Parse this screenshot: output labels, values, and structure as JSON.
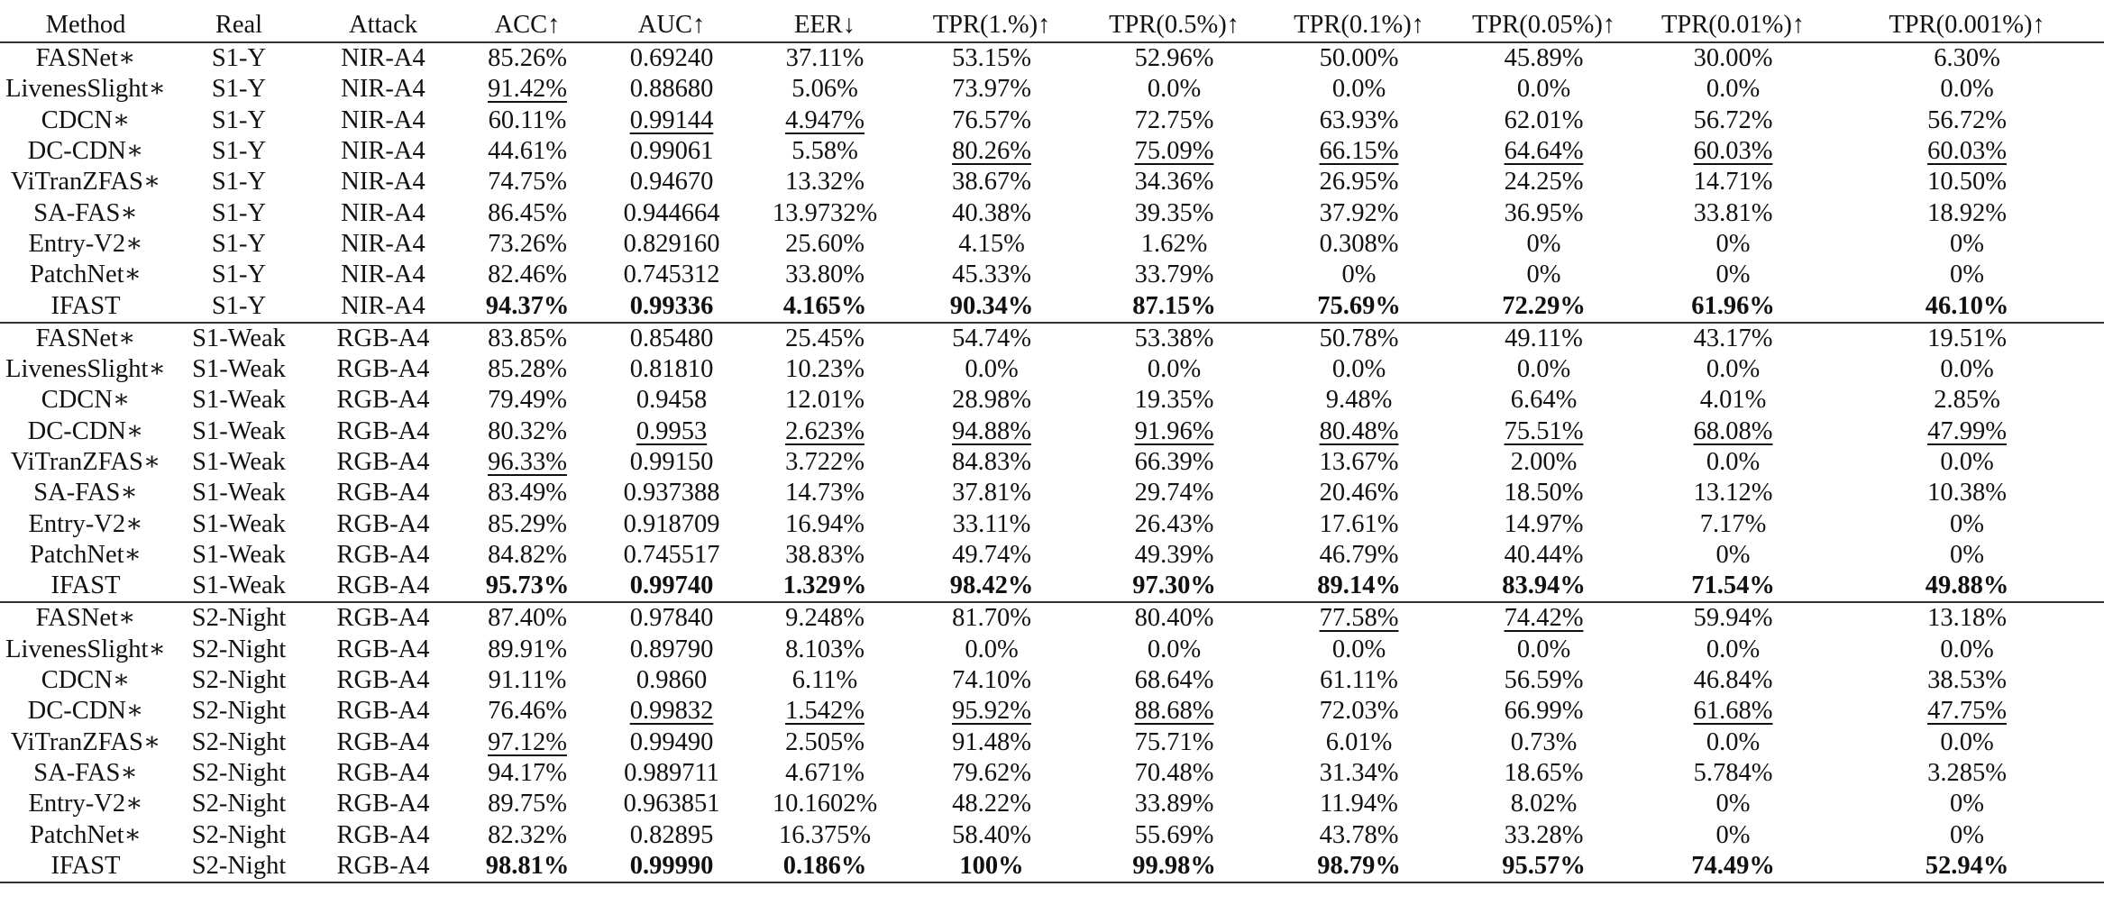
{
  "columns": [
    "Method",
    "Real",
    "Attack",
    "ACC↑",
    "AUC↑",
    "EER↓",
    "TPR(1.%)↑",
    "TPR(0.5%)↑",
    "TPR(0.1%)↑",
    "TPR(0.05%)↑",
    "TPR(0.01%)↑",
    "TPR(0.001%)↑"
  ],
  "groups": [
    {
      "rows": [
        {
          "cells": [
            "FASNet∗",
            "S1-Y",
            "NIR-A4",
            "85.26%",
            "0.69240",
            "37.11%",
            "53.15%",
            "52.96%",
            "50.00%",
            "45.89%",
            "30.00%",
            "6.30%"
          ],
          "bold": [],
          "underline": []
        },
        {
          "cells": [
            "LivenesSlight∗",
            "S1-Y",
            "NIR-A4",
            "91.42%",
            "0.88680",
            "5.06%",
            "73.97%",
            "0.0%",
            "0.0%",
            "0.0%",
            "0.0%",
            "0.0%"
          ],
          "bold": [],
          "underline": [
            3
          ]
        },
        {
          "cells": [
            "CDCN∗",
            "S1-Y",
            "NIR-A4",
            "60.11%",
            "0.99144",
            "4.947%",
            "76.57%",
            "72.75%",
            "63.93%",
            "62.01%",
            "56.72%",
            "56.72%"
          ],
          "bold": [],
          "underline": [
            4,
            5
          ]
        },
        {
          "cells": [
            "DC-CDN∗",
            "S1-Y",
            "NIR-A4",
            "44.61%",
            "0.99061",
            "5.58%",
            "80.26%",
            "75.09%",
            "66.15%",
            "64.64%",
            "60.03%",
            "60.03%"
          ],
          "bold": [],
          "underline": [
            6,
            7,
            8,
            9,
            10,
            11
          ]
        },
        {
          "cells": [
            "ViTranZFAS∗",
            "S1-Y",
            "NIR-A4",
            "74.75%",
            "0.94670",
            "13.32%",
            "38.67%",
            "34.36%",
            "26.95%",
            "24.25%",
            "14.71%",
            "10.50%"
          ],
          "bold": [],
          "underline": []
        },
        {
          "cells": [
            "SA-FAS∗",
            "S1-Y",
            "NIR-A4",
            "86.45%",
            "0.944664",
            "13.9732%",
            "40.38%",
            "39.35%",
            "37.92%",
            "36.95%",
            "33.81%",
            "18.92%"
          ],
          "bold": [],
          "underline": []
        },
        {
          "cells": [
            "Entry-V2∗",
            "S1-Y",
            "NIR-A4",
            "73.26%",
            "0.829160",
            "25.60%",
            "4.15%",
            "1.62%",
            "0.308%",
            "0%",
            "0%",
            "0%"
          ],
          "bold": [],
          "underline": []
        },
        {
          "cells": [
            "PatchNet∗",
            "S1-Y",
            "NIR-A4",
            "82.46%",
            "0.745312",
            "33.80%",
            "45.33%",
            "33.79%",
            "0%",
            "0%",
            "0%",
            "0%"
          ],
          "bold": [],
          "underline": []
        },
        {
          "cells": [
            "IFAST",
            "S1-Y",
            "NIR-A4",
            "94.37%",
            "0.99336",
            "4.165%",
            "90.34%",
            "87.15%",
            "75.69%",
            "72.29%",
            "61.96%",
            "46.10%"
          ],
          "bold": [
            3,
            4,
            5,
            6,
            7,
            8,
            9,
            10,
            11
          ],
          "underline": []
        }
      ]
    },
    {
      "rows": [
        {
          "cells": [
            "FASNet∗",
            "S1-Weak",
            "RGB-A4",
            "83.85%",
            "0.85480",
            "25.45%",
            "54.74%",
            "53.38%",
            "50.78%",
            "49.11%",
            "43.17%",
            "19.51%"
          ],
          "bold": [],
          "underline": []
        },
        {
          "cells": [
            "LivenesSlight∗",
            "S1-Weak",
            "RGB-A4",
            "85.28%",
            "0.81810",
            "10.23%",
            "0.0%",
            "0.0%",
            "0.0%",
            "0.0%",
            "0.0%",
            "0.0%"
          ],
          "bold": [],
          "underline": []
        },
        {
          "cells": [
            "CDCN∗",
            "S1-Weak",
            "RGB-A4",
            "79.49%",
            "0.9458",
            "12.01%",
            "28.98%",
            "19.35%",
            "9.48%",
            "6.64%",
            "4.01%",
            "2.85%"
          ],
          "bold": [],
          "underline": []
        },
        {
          "cells": [
            "DC-CDN∗",
            "S1-Weak",
            "RGB-A4",
            "80.32%",
            "0.9953",
            "2.623%",
            "94.88%",
            "91.96%",
            "80.48%",
            "75.51%",
            "68.08%",
            "47.99%"
          ],
          "bold": [],
          "underline": [
            4,
            5,
            6,
            7,
            8,
            9,
            10,
            11
          ]
        },
        {
          "cells": [
            "ViTranZFAS∗",
            "S1-Weak",
            "RGB-A4",
            "96.33%",
            "0.99150",
            "3.722%",
            "84.83%",
            "66.39%",
            "13.67%",
            "2.00%",
            "0.0%",
            "0.0%"
          ],
          "bold": [],
          "underline": [
            3
          ]
        },
        {
          "cells": [
            "SA-FAS∗",
            "S1-Weak",
            "RGB-A4",
            "83.49%",
            "0.937388",
            "14.73%",
            "37.81%",
            "29.74%",
            "20.46%",
            "18.50%",
            "13.12%",
            "10.38%"
          ],
          "bold": [],
          "underline": []
        },
        {
          "cells": [
            "Entry-V2∗",
            "S1-Weak",
            "RGB-A4",
            "85.29%",
            "0.918709",
            "16.94%",
            "33.11%",
            "26.43%",
            "17.61%",
            "14.97%",
            "7.17%",
            "0%"
          ],
          "bold": [],
          "underline": []
        },
        {
          "cells": [
            "PatchNet∗",
            "S1-Weak",
            "RGB-A4",
            "84.82%",
            "0.745517",
            "38.83%",
            "49.74%",
            "49.39%",
            "46.79%",
            "40.44%",
            "0%",
            "0%"
          ],
          "bold": [],
          "underline": []
        },
        {
          "cells": [
            "IFAST",
            "S1-Weak",
            "RGB-A4",
            "95.73%",
            "0.99740",
            "1.329%",
            "98.42%",
            "97.30%",
            "89.14%",
            "83.94%",
            "71.54%",
            "49.88%"
          ],
          "bold": [
            3,
            4,
            5,
            6,
            7,
            8,
            9,
            10,
            11
          ],
          "underline": []
        }
      ]
    },
    {
      "rows": [
        {
          "cells": [
            "FASNet∗",
            "S2-Night",
            "RGB-A4",
            "87.40%",
            "0.97840",
            "9.248%",
            "81.70%",
            "80.40%",
            "77.58%",
            "74.42%",
            "59.94%",
            "13.18%"
          ],
          "bold": [],
          "underline": [
            8,
            9
          ]
        },
        {
          "cells": [
            "LivenesSlight∗",
            "S2-Night",
            "RGB-A4",
            "89.91%",
            "0.89790",
            "8.103%",
            "0.0%",
            "0.0%",
            "0.0%",
            "0.0%",
            "0.0%",
            "0.0%"
          ],
          "bold": [],
          "underline": []
        },
        {
          "cells": [
            "CDCN∗",
            "S2-Night",
            "RGB-A4",
            "91.11%",
            "0.9860",
            "6.11%",
            "74.10%",
            "68.64%",
            "61.11%",
            "56.59%",
            "46.84%",
            "38.53%"
          ],
          "bold": [],
          "underline": []
        },
        {
          "cells": [
            "DC-CDN∗",
            "S2-Night",
            "RGB-A4",
            "76.46%",
            "0.99832",
            "1.542%",
            "95.92%",
            "88.68%",
            "72.03%",
            "66.99%",
            "61.68%",
            "47.75%"
          ],
          "bold": [],
          "underline": [
            4,
            5,
            6,
            7,
            10,
            11
          ]
        },
        {
          "cells": [
            "ViTranZFAS∗",
            "S2-Night",
            "RGB-A4",
            "97.12%",
            "0.99490",
            "2.505%",
            "91.48%",
            "75.71%",
            "6.01%",
            "0.73%",
            "0.0%",
            "0.0%"
          ],
          "bold": [],
          "underline": [
            3
          ]
        },
        {
          "cells": [
            "SA-FAS∗",
            "S2-Night",
            "RGB-A4",
            "94.17%",
            "0.989711",
            "4.671%",
            "79.62%",
            "70.48%",
            "31.34%",
            "18.65%",
            "5.784%",
            "3.285%"
          ],
          "bold": [],
          "underline": []
        },
        {
          "cells": [
            "Entry-V2∗",
            "S2-Night",
            "RGB-A4",
            "89.75%",
            "0.963851",
            "10.1602%",
            "48.22%",
            "33.89%",
            "11.94%",
            "8.02%",
            "0%",
            "0%"
          ],
          "bold": [],
          "underline": []
        },
        {
          "cells": [
            "PatchNet∗",
            "S2-Night",
            "RGB-A4",
            "82.32%",
            "0.82895",
            "16.375%",
            "58.40%",
            "55.69%",
            "43.78%",
            "33.28%",
            "0%",
            "0%"
          ],
          "bold": [],
          "underline": []
        },
        {
          "cells": [
            "IFAST",
            "S2-Night",
            "RGB-A4",
            "98.81%",
            "0.99990",
            "0.186%",
            "100%",
            "99.98%",
            "98.79%",
            "95.57%",
            "74.49%",
            "52.94%"
          ],
          "bold": [
            3,
            4,
            5,
            6,
            7,
            8,
            9,
            10,
            11
          ],
          "underline": []
        }
      ]
    }
  ]
}
